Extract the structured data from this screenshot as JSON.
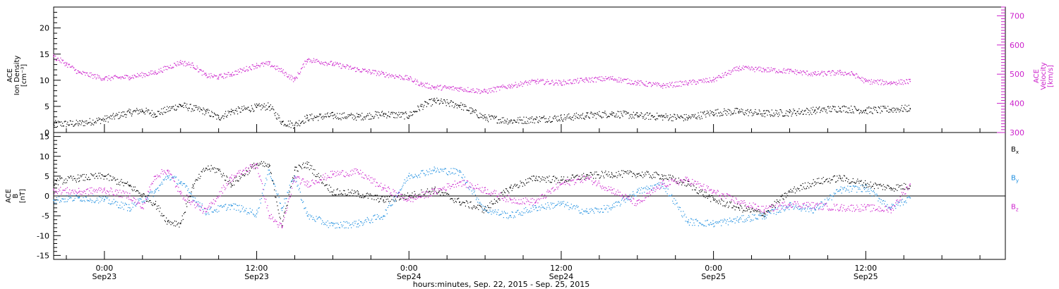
{
  "colors": {
    "black": "#000000",
    "magenta": "#cc22cc",
    "blue": "#1f8fe0"
  },
  "footer_label": "hours:minutes, Sep. 22, 2015 - Sep. 25, 2015",
  "time_axis": {
    "start_hour": -4,
    "end_hour": 71,
    "ticks": [
      {
        "hour": 0,
        "time": "0:00",
        "date": "Sep23"
      },
      {
        "hour": 12,
        "time": "12:00",
        "date": "Sep23"
      },
      {
        "hour": 24,
        "time": "0:00",
        "date": "Sep24"
      },
      {
        "hour": 36,
        "time": "12:00",
        "date": "Sep24"
      },
      {
        "hour": 48,
        "time": "0:00",
        "date": "Sep25"
      },
      {
        "hour": 60,
        "time": "12:00",
        "date": "Sep25"
      }
    ]
  },
  "panels": {
    "top": {
      "left_label": [
        "ACE",
        "Ion Density",
        "[cm⁻³]"
      ],
      "right_label": [
        "ACE",
        "Velocity",
        "[km/s]"
      ],
      "left_ticks": [
        "0",
        "5",
        "10",
        "15",
        "20"
      ],
      "right_ticks": [
        "300",
        "400",
        "500",
        "600",
        "700"
      ]
    },
    "bottom": {
      "left_label": [
        "ACE",
        "B",
        "[nT]"
      ],
      "left_ticks": [
        "-15",
        "-10",
        "-5",
        "0",
        "5",
        "10",
        "15"
      ],
      "legend": [
        {
          "base": "B",
          "sub": "x",
          "color": "#000000"
        },
        {
          "base": "B",
          "sub": "y",
          "color": "#1f8fe0"
        },
        {
          "base": "B",
          "sub": "z",
          "color": "#cc22cc"
        }
      ]
    }
  },
  "chart_data": [
    {
      "type": "scatter",
      "title": "",
      "xlabel": "hours:minutes, Sep. 22, 2015 - Sep. 25, 2015",
      "ylabel": "ACE Ion Density [cm⁻³]",
      "ylim": [
        0,
        24
      ],
      "y2label": "ACE Velocity [km/s]",
      "y2lim": [
        300,
        730
      ],
      "x_units": "hours since 2015-09-23 00:00",
      "series": [
        {
          "name": "Ion Density",
          "axis": "left",
          "color": "#000000",
          "x": [
            -4,
            -2,
            0,
            2,
            3,
            4,
            6,
            8,
            9,
            10,
            12,
            13,
            14,
            15,
            16,
            18,
            20,
            22,
            24,
            25,
            26,
            28,
            29,
            30,
            32,
            34,
            36,
            38,
            40,
            42,
            44,
            46,
            48,
            50,
            52,
            54,
            56,
            58,
            60,
            62,
            63.5
          ],
          "y": [
            1.6,
            1.7,
            2.5,
            3.8,
            4.2,
            3.5,
            5.2,
            4.0,
            2.8,
            4.0,
            4.8,
            5.0,
            2.0,
            1.4,
            2.8,
            3.2,
            3.0,
            3.5,
            3.2,
            5.0,
            6.0,
            5.2,
            4.0,
            2.8,
            2.2,
            2.5,
            2.8,
            3.2,
            3.6,
            3.2,
            3.0,
            2.8,
            3.8,
            4.0,
            3.6,
            3.8,
            4.2,
            4.6,
            4.2,
            4.4,
            4.6
          ]
        },
        {
          "name": "Velocity",
          "axis": "right",
          "color": "#cc22cc",
          "x": [
            -4,
            -3,
            -2,
            0,
            2,
            4,
            6,
            7,
            8,
            9,
            10,
            12,
            13,
            14,
            15,
            16,
            18,
            20,
            22,
            24,
            25,
            26,
            28,
            30,
            32,
            34,
            36,
            38,
            40,
            42,
            44,
            46,
            48,
            50,
            52,
            54,
            56,
            58,
            59,
            60,
            62,
            63.5
          ],
          "y": [
            560,
            535,
            505,
            485,
            490,
            505,
            540,
            530,
            495,
            490,
            500,
            530,
            535,
            510,
            480,
            550,
            535,
            515,
            500,
            485,
            465,
            455,
            450,
            440,
            460,
            475,
            470,
            480,
            485,
            470,
            460,
            470,
            480,
            520,
            515,
            510,
            500,
            505,
            500,
            475,
            470,
            475
          ]
        }
      ]
    },
    {
      "type": "scatter",
      "title": "",
      "xlabel": "hours:minutes, Sep. 22, 2015 - Sep. 25, 2015",
      "ylabel": "ACE B [nT]",
      "ylim": [
        -16,
        16
      ],
      "x_units": "hours since 2015-09-23 00:00",
      "series": [
        {
          "name": "Bx",
          "color": "#000000",
          "x": [
            -4,
            -2,
            0,
            2,
            4,
            5,
            6,
            7,
            8,
            9,
            10,
            12,
            13,
            14,
            15,
            16,
            18,
            20,
            22,
            24,
            26,
            28,
            30,
            32,
            34,
            36,
            38,
            40,
            42,
            44,
            46,
            48,
            50,
            52,
            54,
            56,
            58,
            60,
            62,
            63.5
          ],
          "y": [
            3.5,
            4.5,
            5.0,
            2.5,
            -2.0,
            -6.5,
            -7.0,
            2.5,
            7.0,
            6.5,
            3.0,
            8.0,
            7.5,
            -7.5,
            6.5,
            8.0,
            1.0,
            0.5,
            -1.0,
            0.0,
            1.5,
            -1.5,
            -3.5,
            2.0,
            4.5,
            4.0,
            5.0,
            5.5,
            5.5,
            5.0,
            3.0,
            -1.0,
            -3.0,
            -4.5,
            1.0,
            3.5,
            4.5,
            3.0,
            2.0,
            2.5
          ]
        },
        {
          "name": "By",
          "color": "#1f8fe0",
          "x": [
            -4,
            -2,
            0,
            2,
            4,
            5,
            6,
            8,
            10,
            12,
            13,
            14,
            15,
            16,
            18,
            20,
            22,
            24,
            26,
            28,
            30,
            32,
            34,
            36,
            38,
            40,
            42,
            44,
            46,
            48,
            50,
            52,
            54,
            56,
            58,
            60,
            62,
            63.5
          ],
          "y": [
            -1.0,
            -0.5,
            -1.0,
            -3.0,
            1.0,
            5.0,
            3.5,
            -4.0,
            -2.5,
            -4.5,
            6.5,
            -3.0,
            5.0,
            -5.0,
            -7.5,
            -7.0,
            -5.0,
            5.0,
            6.5,
            6.0,
            -3.5,
            -5.0,
            -3.0,
            -2.0,
            -4.0,
            -3.0,
            1.0,
            3.0,
            -6.5,
            -7.0,
            -6.0,
            -5.0,
            -2.5,
            -3.5,
            1.5,
            2.0,
            -3.0,
            -0.5
          ]
        },
        {
          "name": "Bz",
          "color": "#cc22cc",
          "x": [
            -4,
            -2,
            0,
            2,
            3,
            4,
            5,
            6,
            8,
            10,
            12,
            13,
            14,
            15,
            16,
            18,
            20,
            22,
            24,
            26,
            28,
            30,
            32,
            34,
            36,
            38,
            40,
            42,
            44,
            46,
            48,
            50,
            52,
            54,
            56,
            58,
            60,
            62,
            63.5
          ],
          "y": [
            1.5,
            1.0,
            1.5,
            0.0,
            -3.0,
            5.0,
            6.5,
            0.5,
            -4.0,
            4.5,
            8.0,
            -5.0,
            -8.0,
            4.5,
            3.0,
            5.5,
            6.0,
            2.0,
            -1.0,
            1.0,
            3.5,
            1.5,
            -1.0,
            -1.5,
            3.0,
            4.5,
            1.5,
            -2.0,
            3.0,
            4.0,
            1.0,
            -1.5,
            -3.5,
            -2.0,
            -2.5,
            -3.0,
            -3.0,
            -3.5,
            3.0
          ]
        }
      ]
    }
  ]
}
